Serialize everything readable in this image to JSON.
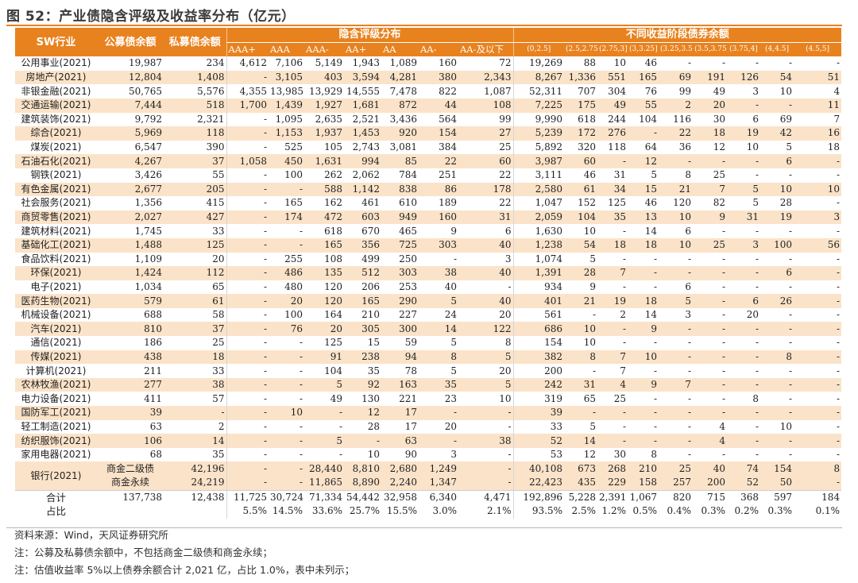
{
  "title": "图 52：产业债隐含评级及收益率分布（亿元）",
  "header": {
    "industry": "SW行业",
    "public": "公募债余额",
    "private": "私募债余额",
    "rating_group": "隐含评级分布",
    "yield_group": "不同收益阶段债券余额",
    "ratings": [
      "AAA+",
      "AAA",
      "AAA-",
      "AA+",
      "AA",
      "AA-",
      "AA-及以下"
    ],
    "yields": [
      "(0,2.5]",
      "(2.5,2.75]",
      "(2.75,3]",
      "(3,3.25]",
      "(3.25,3.5]",
      "(3.5,3.75]",
      "(3.75,4]",
      "(4,4.5]",
      "(4.5,5]"
    ]
  },
  "rows": [
    {
      "name": "公用事业(2021)",
      "shade": false,
      "cells": [
        "19,987",
        "234",
        "4,612",
        "7,106",
        "5,149",
        "1,943",
        "1,089",
        "160",
        "72",
        "19,269",
        "88",
        "10",
        "46",
        "-",
        "-",
        "-",
        "-",
        "-"
      ]
    },
    {
      "name": "房地产(2021)",
      "shade": true,
      "cells": [
        "12,804",
        "1,408",
        "-",
        "3,105",
        "403",
        "3,594",
        "4,281",
        "380",
        "2,343",
        "8,267",
        "1,336",
        "551",
        "165",
        "69",
        "191",
        "126",
        "54",
        "51"
      ]
    },
    {
      "name": "非银金融(2021)",
      "shade": false,
      "cells": [
        "50,765",
        "5,576",
        "4,355",
        "13,985",
        "13,929",
        "14,555",
        "7,478",
        "822",
        "1,087",
        "52,311",
        "707",
        "304",
        "76",
        "99",
        "49",
        "3",
        "10",
        "4"
      ]
    },
    {
      "name": "交通运输(2021)",
      "shade": true,
      "cells": [
        "7,444",
        "518",
        "1,700",
        "1,439",
        "1,927",
        "1,681",
        "872",
        "44",
        "108",
        "7,225",
        "175",
        "49",
        "55",
        "2",
        "20",
        "-",
        "-",
        "11"
      ]
    },
    {
      "name": "建筑装饰(2021)",
      "shade": false,
      "cells": [
        "9,792",
        "2,321",
        "-",
        "1,095",
        "2,635",
        "2,521",
        "3,436",
        "564",
        "99",
        "9,990",
        "618",
        "244",
        "104",
        "116",
        "30",
        "6",
        "69",
        "7"
      ]
    },
    {
      "name": "综合(2021)",
      "shade": true,
      "cells": [
        "5,969",
        "118",
        "-",
        "1,153",
        "1,937",
        "1,453",
        "920",
        "154",
        "27",
        "5,239",
        "172",
        "276",
        "-",
        "22",
        "18",
        "19",
        "42",
        "16"
      ]
    },
    {
      "name": "煤炭(2021)",
      "shade": false,
      "cells": [
        "6,547",
        "390",
        "-",
        "525",
        "105",
        "2,743",
        "3,081",
        "384",
        "25",
        "5,892",
        "320",
        "118",
        "64",
        "36",
        "12",
        "10",
        "5",
        "18"
      ]
    },
    {
      "name": "石油石化(2021)",
      "shade": true,
      "cells": [
        "4,267",
        "37",
        "1,058",
        "450",
        "1,631",
        "994",
        "85",
        "22",
        "60",
        "3,987",
        "60",
        "-",
        "12",
        "-",
        "-",
        "-",
        "6",
        "-"
      ]
    },
    {
      "name": "钢铁(2021)",
      "shade": false,
      "cells": [
        "3,426",
        "55",
        "-",
        "100",
        "262",
        "2,062",
        "784",
        "251",
        "22",
        "3,111",
        "46",
        "31",
        "5",
        "8",
        "25",
        "-",
        "-",
        "-"
      ]
    },
    {
      "name": "有色金属(2021)",
      "shade": true,
      "cells": [
        "2,677",
        "205",
        "-",
        "-",
        "588",
        "1,142",
        "838",
        "86",
        "178",
        "2,580",
        "61",
        "34",
        "15",
        "21",
        "7",
        "5",
        "10",
        "10"
      ]
    },
    {
      "name": "社会服务(2021)",
      "shade": false,
      "cells": [
        "1,356",
        "415",
        "-",
        "165",
        "162",
        "461",
        "610",
        "189",
        "22",
        "1,047",
        "152",
        "125",
        "46",
        "120",
        "82",
        "5",
        "28",
        "-"
      ]
    },
    {
      "name": "商贸零售(2021)",
      "shade": true,
      "cells": [
        "2,027",
        "427",
        "-",
        "174",
        "472",
        "603",
        "949",
        "160",
        "31",
        "2,059",
        "104",
        "35",
        "13",
        "10",
        "9",
        "31",
        "19",
        "3"
      ]
    },
    {
      "name": "建筑材料(2021)",
      "shade": false,
      "cells": [
        "1,745",
        "33",
        "-",
        "-",
        "618",
        "670",
        "465",
        "9",
        "6",
        "1,630",
        "10",
        "-",
        "14",
        "6",
        "-",
        "-",
        "-",
        "-"
      ]
    },
    {
      "name": "基础化工(2021)",
      "shade": true,
      "cells": [
        "1,488",
        "125",
        "-",
        "-",
        "165",
        "356",
        "725",
        "303",
        "40",
        "1,238",
        "54",
        "18",
        "18",
        "10",
        "25",
        "3",
        "100",
        "56"
      ]
    },
    {
      "name": "食品饮料(2021)",
      "shade": false,
      "cells": [
        "1,109",
        "20",
        "-",
        "255",
        "108",
        "499",
        "250",
        "-",
        "3",
        "1,074",
        "5",
        "-",
        "-",
        "-",
        "-",
        "-",
        "-",
        "-"
      ]
    },
    {
      "name": "环保(2021)",
      "shade": true,
      "cells": [
        "1,424",
        "112",
        "-",
        "486",
        "135",
        "512",
        "303",
        "38",
        "40",
        "1,391",
        "28",
        "7",
        "-",
        "-",
        "-",
        "-",
        "6",
        "-"
      ]
    },
    {
      "name": "电子(2021)",
      "shade": false,
      "cells": [
        "1,034",
        "65",
        "-",
        "480",
        "120",
        "206",
        "253",
        "40",
        "-",
        "934",
        "9",
        "-",
        "-",
        "6",
        "-",
        "-",
        "-",
        "-"
      ]
    },
    {
      "name": "医药生物(2021)",
      "shade": true,
      "cells": [
        "579",
        "61",
        "-",
        "20",
        "120",
        "165",
        "290",
        "5",
        "40",
        "401",
        "21",
        "19",
        "18",
        "5",
        "-",
        "6",
        "26",
        "-"
      ]
    },
    {
      "name": "机械设备(2021)",
      "shade": false,
      "cells": [
        "688",
        "58",
        "-",
        "100",
        "164",
        "210",
        "227",
        "24",
        "20",
        "561",
        "-",
        "2",
        "14",
        "3",
        "-",
        "20",
        "-",
        "-"
      ]
    },
    {
      "name": "汽车(2021)",
      "shade": true,
      "cells": [
        "810",
        "37",
        "76",
        "20",
        "305",
        "300",
        "14",
        "122",
        "686",
        "10",
        "-",
        "9",
        "-",
        "-",
        "-",
        "-",
        "-"
      ],
      "skip_first": true
    },
    {
      "name": "通信(2021)",
      "shade": false,
      "cells": [
        "186",
        "25",
        "-",
        "-",
        "125",
        "15",
        "59",
        "5",
        "8",
        "154",
        "10",
        "-",
        "-",
        "-",
        "-",
        "-",
        "-",
        "-"
      ]
    },
    {
      "name": "传媒(2021)",
      "shade": true,
      "cells": [
        "438",
        "18",
        "-",
        "-",
        "91",
        "238",
        "94",
        "8",
        "5",
        "382",
        "8",
        "7",
        "10",
        "-",
        "-",
        "-",
        "8",
        "-"
      ]
    },
    {
      "name": "计算机(2021)",
      "shade": false,
      "cells": [
        "211",
        "33",
        "-",
        "-",
        "104",
        "35",
        "78",
        "5",
        "20",
        "200",
        "-",
        "7",
        "-",
        "-",
        "-",
        "-",
        "-",
        "-"
      ]
    },
    {
      "name": "农林牧渔(2021)",
      "shade": true,
      "cells": [
        "277",
        "38",
        "-",
        "-",
        "5",
        "92",
        "163",
        "35",
        "5",
        "242",
        "31",
        "4",
        "9",
        "7",
        "-",
        "-",
        "-",
        "-"
      ]
    },
    {
      "name": "电力设备(2021)",
      "shade": false,
      "cells": [
        "411",
        "57",
        "-",
        "-",
        "49",
        "130",
        "221",
        "23",
        "10",
        "319",
        "65",
        "25",
        "-",
        "-",
        "-",
        "8",
        "-",
        "-"
      ]
    },
    {
      "name": "国防军工(2021)",
      "shade": true,
      "cells": [
        "39",
        "-",
        "-",
        "10",
        "-",
        "12",
        "17",
        "-",
        "-",
        "39",
        "-",
        "-",
        "-",
        "-",
        "-",
        "-",
        "-",
        "-"
      ]
    },
    {
      "name": "轻工制造(2021)",
      "shade": false,
      "cells": [
        "63",
        "2",
        "-",
        "-",
        "-",
        "28",
        "17",
        "20",
        "-",
        "33",
        "5",
        "-",
        "-",
        "-",
        "4",
        "-",
        "10",
        "-"
      ]
    },
    {
      "name": "纺织服饰(2021)",
      "shade": true,
      "cells": [
        "106",
        "14",
        "-",
        "-",
        "5",
        "-",
        "63",
        "-",
        "38",
        "52",
        "14",
        "-",
        "-",
        "-",
        "4",
        "-",
        "-",
        "-"
      ]
    },
    {
      "name": "家用电器(2021)",
      "shade": false,
      "cells": [
        "68",
        "35",
        "-",
        "-",
        "-",
        "10",
        "90",
        "3",
        "-",
        "53",
        "12",
        "30",
        "8",
        "-",
        "-",
        "-",
        "-",
        "-"
      ]
    }
  ],
  "bank": {
    "name": "银行(2021)",
    "rows": [
      {
        "label": "商金二级债",
        "cells": [
          "42,196",
          "-",
          "-",
          "28,440",
          "8,810",
          "2,680",
          "1,249",
          "-",
          "40,108",
          "673",
          "268",
          "210",
          "25",
          "40",
          "74",
          "154",
          "8"
        ]
      },
      {
        "label": "商金永续",
        "cells": [
          "24,219",
          "-",
          "-",
          "11,865",
          "8,890",
          "2,240",
          "1,347",
          "-",
          "22,423",
          "435",
          "229",
          "158",
          "257",
          "200",
          "52",
          "50",
          "-"
        ]
      }
    ]
  },
  "total": {
    "label": "合计",
    "cells": [
      "137,738",
      "12,438",
      "11,725",
      "30,724",
      "71,334",
      "54,442",
      "32,958",
      "6,340",
      "4,471",
      "192,896",
      "5,228",
      "2,391",
      "1,067",
      "820",
      "715",
      "368",
      "597",
      "184"
    ]
  },
  "ratio": {
    "label": "占比",
    "cells": [
      "",
      "",
      "5.5%",
      "14.5%",
      "33.6%",
      "25.7%",
      "15.5%",
      "3.0%",
      "2.1%",
      "93.5%",
      "2.5%",
      "1.2%",
      "0.5%",
      "0.4%",
      "0.3%",
      "0.2%",
      "0.3%",
      "0.1%"
    ]
  },
  "notes": [
    "资料来源：Wind，天风证券研究所",
    "注：公募及私募债余额中，不包括商金二级债和商金永续；",
    "注：估值收益率 5%以上债券余额合计 2,021 亿，占比 1.0%，表中未列示；"
  ]
}
